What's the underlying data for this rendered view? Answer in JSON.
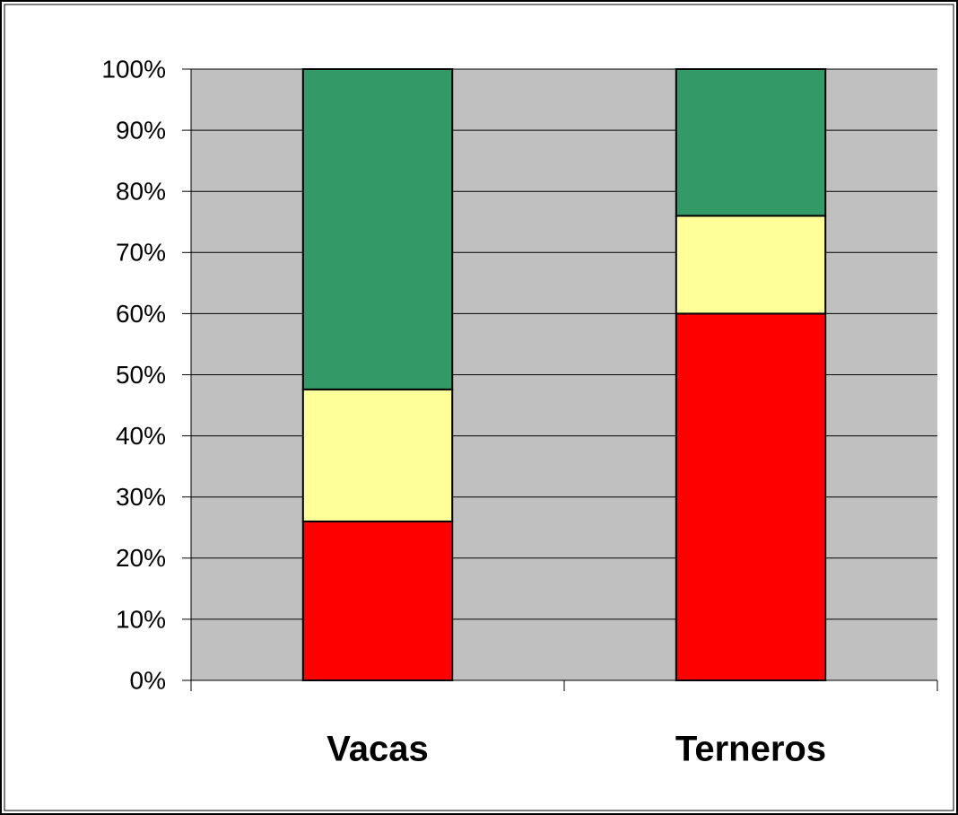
{
  "chart_data": {
    "type": "stacked_bar",
    "categories": [
      "Vacas",
      "Terneros"
    ],
    "series": [
      {
        "color": "#ff0000",
        "values": [
          26,
          60
        ]
      },
      {
        "color": "#ffff99",
        "values": [
          21.6,
          16
        ]
      },
      {
        "color": "#339966",
        "values": [
          52.4,
          24
        ]
      }
    ],
    "ylim": [
      0,
      100
    ],
    "yticks": [
      {
        "value": 0,
        "label": "0%"
      },
      {
        "value": 10,
        "label": "10%"
      },
      {
        "value": 20,
        "label": "20%"
      },
      {
        "value": 30,
        "label": "30%"
      },
      {
        "value": 40,
        "label": "40%"
      },
      {
        "value": 50,
        "label": "50%"
      },
      {
        "value": 60,
        "label": "60%"
      },
      {
        "value": 70,
        "label": "70%"
      },
      {
        "value": 80,
        "label": "80%"
      },
      {
        "value": 90,
        "label": "90%"
      },
      {
        "value": 100,
        "label": "100%"
      }
    ],
    "grid": true,
    "plot_background": "#c0c0c0"
  }
}
